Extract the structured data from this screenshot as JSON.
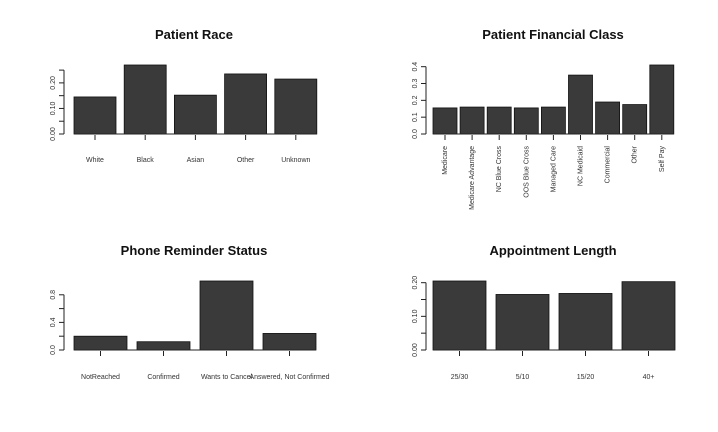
{
  "colors": {
    "bar_fill": "#3a3a3a",
    "bar_stroke": "#111111",
    "axis": "#222222",
    "text": "#333333"
  },
  "chart_data": [
    {
      "type": "bar",
      "title": "Patient Race",
      "categories": [
        "White",
        "Black",
        "Asian",
        "Other",
        "Unknown"
      ],
      "values": [
        0.145,
        0.27,
        0.152,
        0.235,
        0.215
      ],
      "ylim": [
        0,
        0.27
      ],
      "yticks": [
        0.0,
        0.1,
        0.2
      ],
      "ytick_labels": [
        "0.00",
        "0.10",
        "0.20"
      ],
      "ytick_minor": [
        0.05,
        0.15,
        0.25
      ],
      "xlabel_rotation": 0,
      "grid": false
    },
    {
      "type": "bar",
      "title": "Patient Financial Class",
      "categories": [
        "Medicare",
        "Medicare Advantage",
        "NC Blue Cross",
        "OOS Blue Cross",
        "Managed Care",
        "NC Medicaid",
        "Commercial",
        "Other",
        "Self Pay"
      ],
      "values": [
        0.155,
        0.16,
        0.16,
        0.155,
        0.16,
        0.35,
        0.19,
        0.175,
        0.41
      ],
      "ylim": [
        0,
        0.41
      ],
      "yticks": [
        0.0,
        0.1,
        0.2,
        0.3,
        0.4
      ],
      "ytick_labels": [
        "0.0",
        "0.1",
        "0.2",
        "0.3",
        "0.4"
      ],
      "xlabel_rotation": -90,
      "grid": false
    },
    {
      "type": "bar",
      "title": "Phone Reminder Status",
      "categories": [
        "NotReached",
        "Confirmed",
        "Wants to Cancel",
        "Answered, Not Confirmed"
      ],
      "values": [
        0.2,
        0.12,
        1.0,
        0.24
      ],
      "ylim": [
        0,
        1.0
      ],
      "yticks": [
        0.0,
        0.4,
        0.8
      ],
      "ytick_labels": [
        "0.0",
        "0.4",
        "0.8"
      ],
      "ytick_minor": [
        0.2,
        0.6
      ],
      "xlabel_rotation": 0,
      "grid": false
    },
    {
      "type": "bar",
      "title": "Appointment Length",
      "categories": [
        "25/30",
        "5/10",
        "15/20",
        "40+"
      ],
      "values": [
        0.205,
        0.165,
        0.168,
        0.203
      ],
      "ylim": [
        0,
        0.205
      ],
      "yticks": [
        0.0,
        0.1,
        0.2
      ],
      "ytick_labels": [
        "0.00",
        "0.10",
        "0.20"
      ],
      "ytick_minor": [
        0.05,
        0.15
      ],
      "xlabel_rotation": 0,
      "grid": false
    }
  ]
}
